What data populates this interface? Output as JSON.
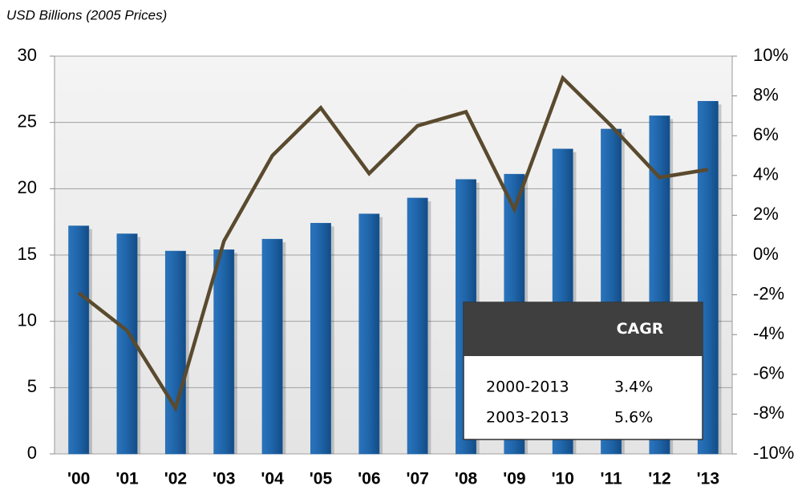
{
  "chart_data": {
    "type": "bar_line",
    "subtitle": "USD Billions (2005 Prices)",
    "categories": [
      "'00",
      "'01",
      "'02",
      "'03",
      "'04",
      "'05",
      "'06",
      "'07",
      "'08",
      "'09",
      "'10",
      "'11",
      "'12",
      "'13"
    ],
    "series": [
      {
        "type": "bar",
        "color": "#1f64a8",
        "values": [
          17.2,
          16.6,
          15.3,
          15.4,
          16.2,
          17.4,
          18.1,
          19.3,
          20.7,
          21.1,
          23.0,
          24.5,
          25.5,
          26.6
        ]
      },
      {
        "type": "line",
        "axis": "y2",
        "color": "#5a4a2e",
        "values": [
          -1.9,
          -3.8,
          -7.7,
          0.7,
          5.0,
          7.4,
          4.1,
          6.5,
          7.2,
          2.3,
          8.9,
          6.5,
          3.9,
          4.3
        ]
      }
    ],
    "ylim": [
      0,
      30
    ],
    "yticks": [
      0,
      5,
      10,
      15,
      20,
      25,
      30
    ],
    "y2lim": [
      -10,
      10
    ],
    "y2ticks": [
      {
        "value": -10,
        "label": "-10%"
      },
      {
        "value": -8,
        "label": "-8%"
      },
      {
        "value": -6,
        "label": "-6%"
      },
      {
        "value": -4,
        "label": "-4%"
      },
      {
        "value": -2,
        "label": "-2%"
      },
      {
        "value": 0,
        "label": "0%"
      },
      {
        "value": 2,
        "label": "2%"
      },
      {
        "value": 4,
        "label": "4%"
      },
      {
        "value": 6,
        "label": "6%"
      },
      {
        "value": 8,
        "label": "8%"
      },
      {
        "value": 10,
        "label": "10%"
      }
    ],
    "grid": true,
    "cagr_table": {
      "header": "CAGR",
      "rows": [
        [
          "2000-2013",
          "3.4%"
        ],
        [
          "2003-2013",
          "5.6%"
        ]
      ]
    }
  }
}
